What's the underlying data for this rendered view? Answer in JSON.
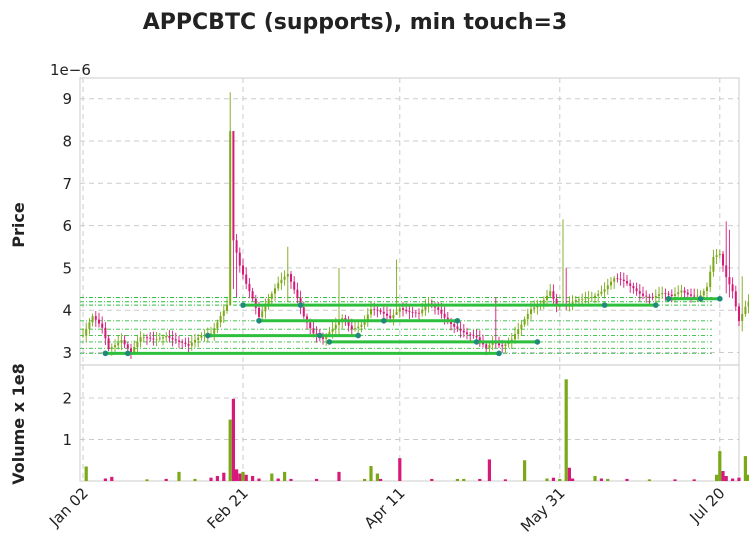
{
  "chart_data": {
    "type": "candlestick",
    "title": "APPCBTC (supports), min touch=3",
    "price_panel": {
      "ylabel": "Price",
      "scale_label": "1e−6",
      "ylim": [
        2.8,
        9.4
      ],
      "yticks": [
        3,
        4,
        5,
        6,
        7,
        8,
        9
      ]
    },
    "volume_panel": {
      "ylabel": "Volume x 1e8",
      "ylim": [
        0,
        2.6
      ],
      "yticks": [
        1,
        2
      ]
    },
    "x_ticks": [
      {
        "label": "Jan 02",
        "day": 0
      },
      {
        "label": "Feb 21",
        "day": 50
      },
      {
        "label": "Apr 11",
        "day": 99
      },
      {
        "label": "May 31",
        "day": 149
      },
      {
        "label": "Jul 20",
        "day": 199
      }
    ],
    "colors": {
      "up": "#7aa817",
      "down": "#d6197a",
      "support": "#2ebf3d",
      "touch": "#1f8a78"
    },
    "price_series": [
      {
        "day": 0,
        "price": 3.4
      },
      {
        "day": 3,
        "price": 3.8
      },
      {
        "day": 6,
        "price": 3.55
      },
      {
        "day": 8,
        "price": 3.1
      },
      {
        "day": 12,
        "price": 3.35
      },
      {
        "day": 15,
        "price": 3.0
      },
      {
        "day": 18,
        "price": 3.3
      },
      {
        "day": 22,
        "price": 3.3
      },
      {
        "day": 26,
        "price": 3.45
      },
      {
        "day": 30,
        "price": 3.25
      },
      {
        "day": 33,
        "price": 3.1
      },
      {
        "day": 37,
        "price": 3.4
      },
      {
        "day": 40,
        "price": 3.5
      },
      {
        "day": 43,
        "price": 3.9
      },
      {
        "day": 45,
        "price": 4.1
      },
      {
        "day": 46,
        "price": 8.2
      },
      {
        "day": 47,
        "price": 5.6
      },
      {
        "day": 49,
        "price": 5.0
      },
      {
        "day": 51,
        "price": 4.6
      },
      {
        "day": 53,
        "price": 4.3
      },
      {
        "day": 55,
        "price": 3.9
      },
      {
        "day": 58,
        "price": 4.3
      },
      {
        "day": 61,
        "price": 4.6
      },
      {
        "day": 64,
        "price": 4.8
      },
      {
        "day": 67,
        "price": 4.3
      },
      {
        "day": 69,
        "price": 3.9
      },
      {
        "day": 72,
        "price": 3.5
      },
      {
        "day": 75,
        "price": 3.3
      },
      {
        "day": 78,
        "price": 3.5
      },
      {
        "day": 81,
        "price": 3.8
      },
      {
        "day": 84,
        "price": 3.6
      },
      {
        "day": 87,
        "price": 3.7
      },
      {
        "day": 90,
        "price": 4.0
      },
      {
        "day": 93,
        "price": 3.9
      },
      {
        "day": 96,
        "price": 3.8
      },
      {
        "day": 99,
        "price": 4.1
      },
      {
        "day": 102,
        "price": 4.0
      },
      {
        "day": 105,
        "price": 3.9
      },
      {
        "day": 108,
        "price": 4.1
      },
      {
        "day": 111,
        "price": 4.0
      },
      {
        "day": 114,
        "price": 3.8
      },
      {
        "day": 117,
        "price": 3.6
      },
      {
        "day": 120,
        "price": 3.4
      },
      {
        "day": 123,
        "price": 3.3
      },
      {
        "day": 126,
        "price": 3.1
      },
      {
        "day": 128,
        "price": 3.3
      },
      {
        "day": 131,
        "price": 3.2
      },
      {
        "day": 134,
        "price": 3.3
      },
      {
        "day": 137,
        "price": 3.6
      },
      {
        "day": 140,
        "price": 4.0
      },
      {
        "day": 143,
        "price": 4.2
      },
      {
        "day": 146,
        "price": 4.5
      },
      {
        "day": 148,
        "price": 4.1
      },
      {
        "day": 151,
        "price": 4.05
      },
      {
        "day": 154,
        "price": 4.2
      },
      {
        "day": 157,
        "price": 4.3
      },
      {
        "day": 160,
        "price": 4.4
      },
      {
        "day": 163,
        "price": 4.5
      },
      {
        "day": 166,
        "price": 4.7
      },
      {
        "day": 169,
        "price": 4.65
      },
      {
        "day": 172,
        "price": 4.55
      },
      {
        "day": 175,
        "price": 4.4
      },
      {
        "day": 178,
        "price": 4.3
      },
      {
        "day": 181,
        "price": 4.35
      },
      {
        "day": 184,
        "price": 4.3
      },
      {
        "day": 187,
        "price": 4.5
      },
      {
        "day": 190,
        "price": 4.4
      },
      {
        "day": 193,
        "price": 4.35
      },
      {
        "day": 195,
        "price": 4.5
      },
      {
        "day": 197,
        "price": 5.2
      },
      {
        "day": 199,
        "price": 5.3
      },
      {
        "day": 201,
        "price": 4.8
      },
      {
        "day": 203,
        "price": 4.5
      },
      {
        "day": 205,
        "price": 3.8
      },
      {
        "day": 207,
        "price": 4.1
      },
      {
        "day": 209,
        "price": 4.3
      }
    ],
    "spikes": [
      {
        "day": 46,
        "high": 9.15,
        "low": 4.2
      },
      {
        "day": 47,
        "high": 7.3,
        "low": 4.5
      },
      {
        "day": 48,
        "high": 5.8,
        "low": 4.3
      },
      {
        "day": 64,
        "high": 5.5,
        "low": 4.2
      },
      {
        "day": 80,
        "high": 5.0,
        "low": 3.4
      },
      {
        "day": 98,
        "high": 5.2,
        "low": 3.9
      },
      {
        "day": 129,
        "high": 4.3,
        "low": 3.1
      },
      {
        "day": 150,
        "high": 6.15,
        "low": 4.1
      },
      {
        "day": 151,
        "high": 5.0,
        "low": 4.0
      },
      {
        "day": 201,
        "high": 6.1,
        "low": 4.4
      },
      {
        "day": 202,
        "high": 5.9,
        "low": 4.3
      },
      {
        "day": 206,
        "high": 4.8,
        "low": 3.5
      }
    ],
    "volume_bars": [
      {
        "day": 1,
        "value": 0.35,
        "up": true
      },
      {
        "day": 7,
        "value": 0.06,
        "up": false
      },
      {
        "day": 9,
        "value": 0.1,
        "up": false
      },
      {
        "day": 20,
        "value": 0.04,
        "up": true
      },
      {
        "day": 26,
        "value": 0.05,
        "up": false
      },
      {
        "day": 30,
        "value": 0.22,
        "up": true
      },
      {
        "day": 35,
        "value": 0.05,
        "up": true
      },
      {
        "day": 40,
        "value": 0.08,
        "up": false
      },
      {
        "day": 42,
        "value": 0.12,
        "up": false
      },
      {
        "day": 44,
        "value": 0.2,
        "up": false
      },
      {
        "day": 46,
        "value": 1.48,
        "up": true
      },
      {
        "day": 47,
        "value": 1.98,
        "up": false
      },
      {
        "day": 48,
        "value": 0.28,
        "up": false
      },
      {
        "day": 49,
        "value": 0.18,
        "up": false
      },
      {
        "day": 50,
        "value": 0.22,
        "up": true
      },
      {
        "day": 51,
        "value": 0.15,
        "up": false
      },
      {
        "day": 53,
        "value": 0.12,
        "up": false
      },
      {
        "day": 55,
        "value": 0.06,
        "up": false
      },
      {
        "day": 59,
        "value": 0.18,
        "up": true
      },
      {
        "day": 61,
        "value": 0.06,
        "up": false
      },
      {
        "day": 63,
        "value": 0.22,
        "up": true
      },
      {
        "day": 65,
        "value": 0.05,
        "up": false
      },
      {
        "day": 73,
        "value": 0.05,
        "up": false
      },
      {
        "day": 80,
        "value": 0.22,
        "up": false
      },
      {
        "day": 88,
        "value": 0.05,
        "up": true
      },
      {
        "day": 90,
        "value": 0.36,
        "up": true
      },
      {
        "day": 92,
        "value": 0.18,
        "up": true
      },
      {
        "day": 93,
        "value": 0.05,
        "up": false
      },
      {
        "day": 99,
        "value": 0.55,
        "up": false
      },
      {
        "day": 109,
        "value": 0.05,
        "up": false
      },
      {
        "day": 117,
        "value": 0.05,
        "up": true
      },
      {
        "day": 119,
        "value": 0.05,
        "up": true
      },
      {
        "day": 124,
        "value": 0.05,
        "up": false
      },
      {
        "day": 127,
        "value": 0.52,
        "up": false
      },
      {
        "day": 132,
        "value": 0.04,
        "up": false
      },
      {
        "day": 138,
        "value": 0.5,
        "up": true
      },
      {
        "day": 145,
        "value": 0.06,
        "up": true
      },
      {
        "day": 147,
        "value": 0.08,
        "up": false
      },
      {
        "day": 149,
        "value": 0.05,
        "up": true
      },
      {
        "day": 151,
        "value": 2.45,
        "up": true
      },
      {
        "day": 152,
        "value": 0.32,
        "up": false
      },
      {
        "day": 153,
        "value": 0.06,
        "up": false
      },
      {
        "day": 160,
        "value": 0.12,
        "up": true
      },
      {
        "day": 162,
        "value": 0.06,
        "up": false
      },
      {
        "day": 164,
        "value": 0.05,
        "up": true
      },
      {
        "day": 170,
        "value": 0.05,
        "up": false
      },
      {
        "day": 177,
        "value": 0.04,
        "up": true
      },
      {
        "day": 185,
        "value": 0.04,
        "up": false
      },
      {
        "day": 191,
        "value": 0.04,
        "up": false
      },
      {
        "day": 198,
        "value": 0.15,
        "up": true
      },
      {
        "day": 199,
        "value": 0.72,
        "up": true
      },
      {
        "day": 200,
        "value": 0.24,
        "up": false
      },
      {
        "day": 201,
        "value": 0.12,
        "up": false
      },
      {
        "day": 203,
        "value": 0.06,
        "up": false
      },
      {
        "day": 205,
        "value": 0.08,
        "up": false
      },
      {
        "day": 207,
        "value": 0.6,
        "up": true
      },
      {
        "day": 208,
        "value": 0.15,
        "up": true
      }
    ],
    "support_lines": [
      {
        "price": 4.12,
        "start": 50,
        "end": 179
      },
      {
        "price": 4.27,
        "start": 183,
        "end": 199
      },
      {
        "price": 3.75,
        "start": 55,
        "end": 117
      },
      {
        "price": 3.4,
        "start": 39,
        "end": 86
      },
      {
        "price": 3.25,
        "start": 77,
        "end": 142
      },
      {
        "price": 2.98,
        "start": 7,
        "end": 130
      }
    ],
    "reference_lines": [
      4.3,
      4.2,
      4.12,
      3.75,
      3.55,
      3.4,
      3.25,
      3.1,
      2.98
    ],
    "touch_points": [
      {
        "day": 7,
        "price": 2.98
      },
      {
        "day": 14,
        "price": 2.98
      },
      {
        "day": 130,
        "price": 2.98
      },
      {
        "day": 39,
        "price": 3.4
      },
      {
        "day": 74,
        "price": 3.4
      },
      {
        "day": 86,
        "price": 3.4
      },
      {
        "day": 77,
        "price": 3.25
      },
      {
        "day": 123,
        "price": 3.25
      },
      {
        "day": 142,
        "price": 3.25
      },
      {
        "day": 55,
        "price": 3.75
      },
      {
        "day": 94,
        "price": 3.75
      },
      {
        "day": 117,
        "price": 3.75
      },
      {
        "day": 50,
        "price": 4.12
      },
      {
        "day": 68,
        "price": 4.12
      },
      {
        "day": 163,
        "price": 4.12
      },
      {
        "day": 179,
        "price": 4.12
      },
      {
        "day": 183,
        "price": 4.27
      },
      {
        "day": 193,
        "price": 4.27
      },
      {
        "day": 199,
        "price": 4.27
      }
    ]
  }
}
